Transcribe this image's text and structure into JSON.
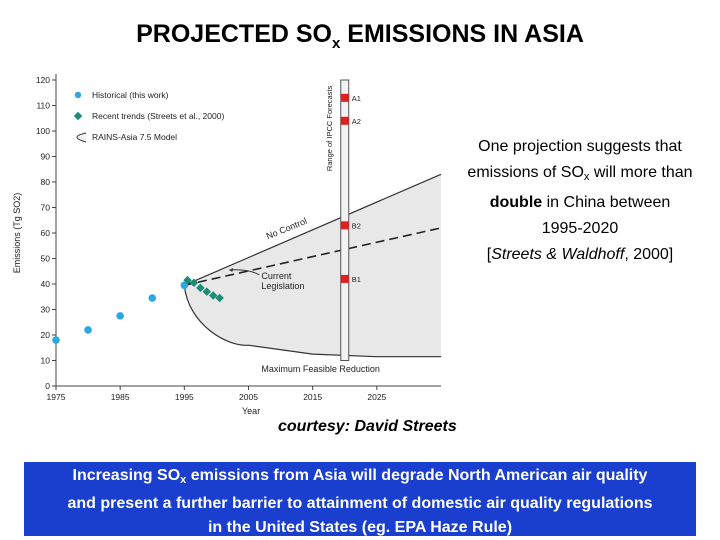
{
  "title": {
    "main": "PROJECTED SO",
    "sub": "x",
    "rest": " EMISSIONS IN ASIA"
  },
  "side_note": {
    "l1": "One projection suggests that",
    "l2a": "emissions of SO",
    "l2sub": "x",
    "l2b": " will more than",
    "l3bold": "double",
    "l3rest": " in China between",
    "l4": "1995-2020",
    "l5open": "[",
    "l5cite": "Streets & Waldhoff",
    "l5close": ", 2000]"
  },
  "courtesy": "courtesy: David Streets",
  "banner": {
    "l1a": "Increasing SO",
    "l1sub": "x",
    "l1b": " emissions from Asia will degrade North American air quality",
    "l2": "and present a further barrier to attainment of domestic air quality regulations",
    "l3": "in the United States (eg. EPA Haze Rule)"
  },
  "colors": {
    "historical": "#29a9e0",
    "recent": "#1a8c78",
    "forecast": "#e02020",
    "envelope": "#e8e8e8",
    "banner": "#1a3fcf"
  },
  "chart_data": {
    "type": "line",
    "xlabel": "Year",
    "ylabel": "Emissions (Tg SO2)",
    "xlim": [
      1975,
      2035
    ],
    "ylim": [
      0,
      120
    ],
    "x_ticks": [
      1975,
      1985,
      1995,
      2005,
      2015,
      2025
    ],
    "y_ticks": [
      0,
      10,
      20,
      30,
      40,
      50,
      60,
      70,
      80,
      90,
      100,
      110,
      120
    ],
    "legend": {
      "position": "top-left",
      "entries": [
        "Historical (this work)",
        "Recent trends (Streets et al., 2000)",
        "RAINS-Asia 7.5 Model"
      ]
    },
    "series": [
      {
        "name": "Historical (this work)",
        "marker": "circle",
        "x": [
          1975,
          1980,
          1985,
          1990,
          1995
        ],
        "y": [
          18,
          22,
          27.5,
          34.5,
          39.5
        ]
      },
      {
        "name": "Recent trends (Streets et al., 2000)",
        "marker": "diamond",
        "x": [
          1995.5,
          1996.5,
          1997.5,
          1998.5,
          1999.5,
          2000.5
        ],
        "y": [
          41.5,
          40.5,
          38.5,
          37,
          35.5,
          34.5
        ]
      }
    ],
    "scenarios": [
      {
        "label": "No Control",
        "x": [
          1995,
          2035
        ],
        "y": [
          39.5,
          83
        ]
      },
      {
        "label": "Current Legislation",
        "dashed": true,
        "x": [
          1995,
          2035
        ],
        "y": [
          39.5,
          62
        ]
      },
      {
        "label": "Maximum Feasible Reduction",
        "x": [
          1995,
          1998,
          2005,
          2015,
          2025,
          2035
        ],
        "y": [
          39.5,
          26,
          16,
          12.5,
          11.5,
          11.5
        ]
      }
    ],
    "ipcc_forecasts": {
      "label": "Range of IPCC Forecasts",
      "x": 2020,
      "range": [
        10,
        120
      ],
      "points": [
        {
          "label": "A1",
          "y": 113
        },
        {
          "label": "A2",
          "y": 104
        },
        {
          "label": "B2",
          "y": 63
        },
        {
          "label": "B1",
          "y": 42
        }
      ]
    }
  }
}
